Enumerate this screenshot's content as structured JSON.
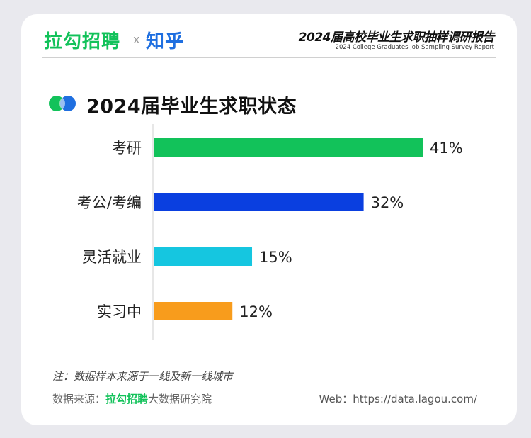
{
  "header": {
    "brand_zhaopin": "拉勾招聘",
    "separator": "x",
    "brand_zhihu": "知乎",
    "report_title_cn": "2024届高校毕业生求职抽样调研报告",
    "report_title_en": "2024 College Graduates Job Sampling Survey Report"
  },
  "colors": {
    "green": "#12c25a",
    "blue": "#0a3fe0",
    "cyan": "#15c6e0",
    "orange": "#f89c1c"
  },
  "chart_data": {
    "type": "bar",
    "orientation": "horizontal",
    "title": "2024届毕业生求职状态",
    "categories": [
      "考研",
      "考公/考编",
      "灵活就业",
      "实习中"
    ],
    "values": [
      41,
      32,
      15,
      12
    ],
    "value_labels": [
      "41%",
      "32%",
      "15%",
      "12%"
    ],
    "unit": "%",
    "xlim": [
      0,
      50
    ],
    "grid": false,
    "legend": "none",
    "bar_colors": [
      "#12c25a",
      "#0a3fe0",
      "#15c6e0",
      "#f89c1c"
    ]
  },
  "footer": {
    "note": "注：数据样本来源于一线及新一线城市",
    "source_prefix": "数据来源：",
    "source_brand": "拉勾招聘",
    "source_suffix": "大数据研究院",
    "web": "Web：https://data.lagou.com/"
  }
}
